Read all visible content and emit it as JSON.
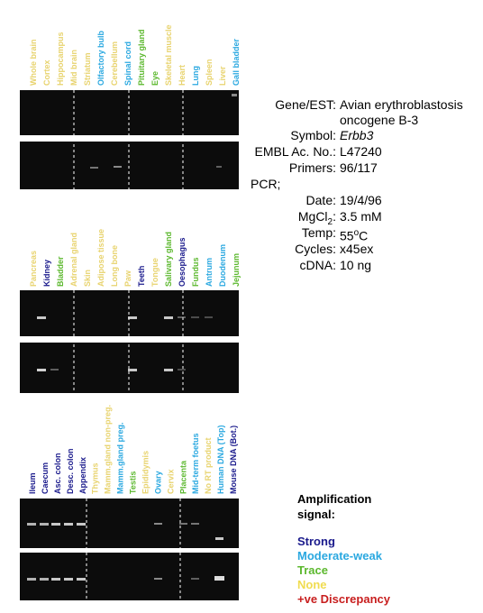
{
  "panels": [
    {
      "lanes": [
        {
          "label": "Whole brain",
          "color": "#e8d36e"
        },
        {
          "label": "Cortex",
          "color": "#e8d36e"
        },
        {
          "label": "Hippocampus",
          "color": "#e8d36e"
        },
        {
          "label": "Mid brain",
          "color": "#e8d36e"
        },
        {
          "label": "Striatum",
          "color": "#e8d36e"
        },
        {
          "label": "Olfactory bulb",
          "color": "#2aa8e0"
        },
        {
          "label": "Cerebellum",
          "color": "#e8d36e"
        },
        {
          "label": "Spinal cord",
          "color": "#2aa8e0"
        },
        {
          "label": "Pituitary gland",
          "color": "#5cb82e"
        },
        {
          "label": "Eye",
          "color": "#5cb82e"
        },
        {
          "label": "Skeletal muscle",
          "color": "#e8d36e"
        },
        {
          "label": "Heart",
          "color": "#e8d36e"
        },
        {
          "label": "Lung",
          "color": "#2aa8e0"
        },
        {
          "label": "Spleen",
          "color": "#e8d36e"
        },
        {
          "label": "Liver",
          "color": "#e8d36e"
        },
        {
          "label": "Gall bladder",
          "color": "#2aa8e0"
        }
      ]
    },
    {
      "lanes": [
        {
          "label": "Pancreas",
          "color": "#e8d36e"
        },
        {
          "label": "Kidney",
          "color": "#1a1a8c"
        },
        {
          "label": "Bladder",
          "color": "#5cb82e"
        },
        {
          "label": "Adrenal gland",
          "color": "#e8d36e"
        },
        {
          "label": "Skin",
          "color": "#e8d36e"
        },
        {
          "label": "Adipose tissue",
          "color": "#e8d36e"
        },
        {
          "label": "Long bone",
          "color": "#e8d36e"
        },
        {
          "label": "Paw",
          "color": "#e8d36e"
        },
        {
          "label": "Teeth",
          "color": "#1a1a8c"
        },
        {
          "label": "Tongue",
          "color": "#e8d36e"
        },
        {
          "label": "Salivary gland",
          "color": "#5cb82e"
        },
        {
          "label": "Oesophagus",
          "color": "#1a1a8c"
        },
        {
          "label": "Fundus",
          "color": "#5cb82e"
        },
        {
          "label": "Antrum",
          "color": "#2aa8e0"
        },
        {
          "label": "Duodenum",
          "color": "#2aa8e0"
        },
        {
          "label": "Jejunum",
          "color": "#5cb82e"
        }
      ]
    },
    {
      "lanes": [
        {
          "label": "Ileum",
          "color": "#1a1a8c"
        },
        {
          "label": "Caecum",
          "color": "#1a1a8c"
        },
        {
          "label": "Asc. colon",
          "color": "#1a1a8c"
        },
        {
          "label": "Desc. colon",
          "color": "#1a1a8c"
        },
        {
          "label": "Appendix",
          "color": "#1a1a8c"
        },
        {
          "label": "Thymus",
          "color": "#e8d36e"
        },
        {
          "label": "Mamm.gland non-preg.",
          "color": "#e8d36e"
        },
        {
          "label": "Mamm.gland preg.",
          "color": "#2aa8e0"
        },
        {
          "label": "Testis",
          "color": "#5cb82e"
        },
        {
          "label": "Epididymis",
          "color": "#e8d36e"
        },
        {
          "label": "Ovary",
          "color": "#2aa8e0"
        },
        {
          "label": "Cervix",
          "color": "#e8d36e"
        },
        {
          "label": "Placenta",
          "color": "#5cb82e"
        },
        {
          "label": "Mid-term foetus",
          "color": "#2aa8e0"
        },
        {
          "label": "No RT product",
          "color": "#e8d36e"
        },
        {
          "label": "Human DNA (Top)",
          "color": "#2aa8e0"
        },
        {
          "label": "Mouse DNA (Bot.)",
          "color": "#1a1a8c"
        }
      ]
    }
  ],
  "gene_info": [
    {
      "label": "Gene/EST:",
      "value": "Avian erythroblastosis oncogene B-3"
    },
    {
      "label": "Symbol:",
      "value": "Erbb3",
      "italic": true
    },
    {
      "label": "EMBL Ac. No.:",
      "value": "L47240"
    },
    {
      "label": "Primers:",
      "value": "96/117"
    },
    {
      "heading": "PCR;"
    },
    {
      "label": "Date:",
      "value": "19/4/96"
    },
    {
      "label": "MgCl",
      "label_sub": "2",
      "label_end": ":",
      "value": "3.5 mM"
    },
    {
      "label": "Temp:",
      "value": "55",
      "value_sup": "o",
      "value_end": "C"
    },
    {
      "label": "Cycles:",
      "value": "x45ex"
    },
    {
      "label": "cDNA:",
      "value": "10 ng"
    }
  ],
  "legend": {
    "title": "Amplification signal:",
    "items": [
      {
        "label": "Strong",
        "color": "#1a1a8c"
      },
      {
        "label": "Moderate-weak",
        "color": "#2aa8e0"
      },
      {
        "label": "Trace",
        "color": "#5cb82e"
      },
      {
        "label": "None",
        "color": "#f0dc50"
      },
      {
        "label": "+ve Discrepancy",
        "color": "#c81e1e"
      }
    ]
  }
}
